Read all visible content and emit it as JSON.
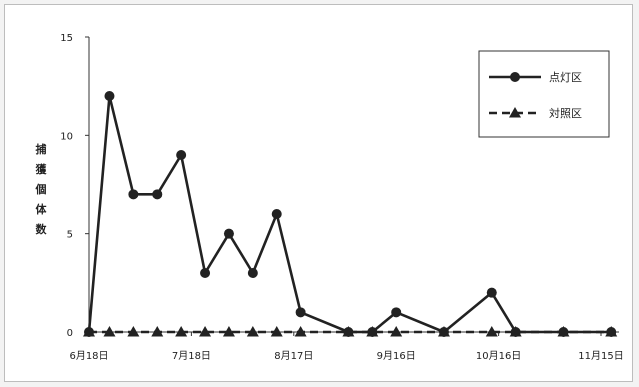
{
  "chart_data": {
    "type": "line",
    "title": "",
    "xlabel": "",
    "ylabel": "捕獲個体数",
    "ylim": [
      0,
      15
    ],
    "yticks": [
      0,
      5,
      10,
      15
    ],
    "xtick_labels": [
      "6月18日",
      "7月18日",
      "8月17日",
      "9月16日",
      "10月16日",
      "11月15日"
    ],
    "xtick_days": [
      0,
      30,
      60,
      90,
      120,
      150
    ],
    "grid": false,
    "legend_position": "top-right",
    "series": [
      {
        "name": "点灯区",
        "style": "solid",
        "marker": "circle",
        "color": "#222222",
        "days": [
          0,
          6,
          13,
          20,
          27,
          34,
          41,
          48,
          55,
          62,
          76,
          83,
          90,
          104,
          118,
          125,
          139,
          153
        ],
        "values": [
          0,
          12,
          7,
          7,
          9,
          3,
          5,
          3,
          6,
          1,
          0,
          0,
          1,
          0,
          2,
          0,
          0,
          0
        ]
      },
      {
        "name": "対照区",
        "style": "dashed",
        "marker": "triangle",
        "color": "#222222",
        "days": [
          0,
          6,
          13,
          20,
          27,
          34,
          41,
          48,
          55,
          62,
          76,
          83,
          90,
          104,
          118,
          125,
          139,
          153
        ],
        "values": [
          0,
          0,
          0,
          0,
          0,
          0,
          0,
          0,
          0,
          0,
          0,
          0,
          0,
          0,
          0,
          0,
          0,
          0
        ]
      }
    ]
  }
}
